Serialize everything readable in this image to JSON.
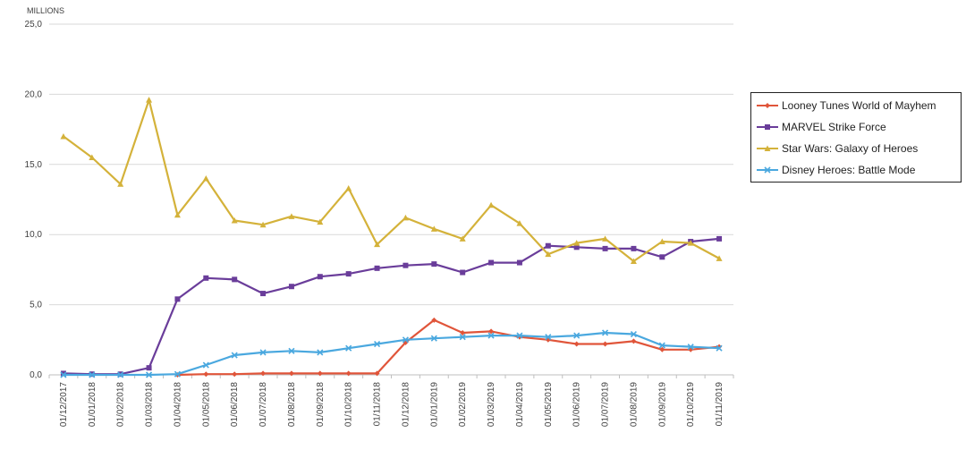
{
  "chart_data": {
    "type": "line",
    "unit_label": "MILLIONS",
    "ylim": [
      0,
      25
    ],
    "y_ticks": [
      "0,0",
      "5,0",
      "10,0",
      "15,0",
      "20,0",
      "25,0"
    ],
    "categories": [
      "01/12/2017",
      "01/01/2018",
      "01/02/2018",
      "01/03/2018",
      "01/04/2018",
      "01/05/2018",
      "01/06/2018",
      "01/07/2018",
      "01/08/2018",
      "01/09/2018",
      "01/10/2018",
      "01/11/2018",
      "01/12/2018",
      "01/01/2019",
      "01/02/2019",
      "01/03/2019",
      "01/04/2019",
      "01/05/2019",
      "01/06/2019",
      "01/07/2019",
      "01/08/2019",
      "01/09/2019",
      "01/10/2019",
      "01/11/2019"
    ],
    "series": [
      {
        "name": "Looney Tunes World of Mayhem",
        "color": "#e0553a",
        "marker": "diamond",
        "values": [
          null,
          null,
          null,
          null,
          0.0,
          0.05,
          0.05,
          0.1,
          0.1,
          0.1,
          0.1,
          0.1,
          2.3,
          3.9,
          3.0,
          3.1,
          2.7,
          2.5,
          2.2,
          2.2,
          2.4,
          1.8,
          1.8,
          2.0
        ]
      },
      {
        "name": "MARVEL Strike Force",
        "color": "#6a3d9a",
        "marker": "square",
        "values": [
          0.1,
          0.05,
          0.05,
          0.5,
          5.4,
          6.9,
          6.8,
          5.8,
          6.3,
          7.0,
          7.2,
          7.6,
          7.8,
          7.9,
          7.3,
          8.0,
          8.0,
          9.2,
          9.1,
          9.0,
          9.0,
          8.4,
          9.5,
          9.7
        ]
      },
      {
        "name": "Star Wars: Galaxy of Heroes",
        "color": "#d4b23a",
        "marker": "triangle",
        "values": [
          17.0,
          15.5,
          13.6,
          19.6,
          11.4,
          14.0,
          11.0,
          10.7,
          11.3,
          10.9,
          13.3,
          9.3,
          11.2,
          10.4,
          9.7,
          12.1,
          10.8,
          8.6,
          9.4,
          9.7,
          8.1,
          9.5,
          9.4,
          8.3
        ]
      },
      {
        "name": "Disney Heroes: Battle Mode",
        "color": "#4aa8df",
        "marker": "x",
        "values": [
          0.0,
          0.0,
          0.0,
          0.0,
          0.05,
          0.7,
          1.4,
          1.6,
          1.7,
          1.6,
          1.9,
          2.2,
          2.5,
          2.6,
          2.7,
          2.8,
          2.8,
          2.7,
          2.8,
          3.0,
          2.9,
          2.1,
          2.0,
          1.9
        ]
      }
    ]
  }
}
